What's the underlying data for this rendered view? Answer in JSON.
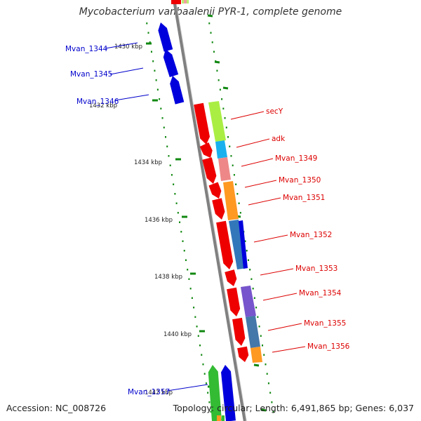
{
  "title": "Mycobacterium vanbaalenii PYR-1, complete genome",
  "footer": {
    "accession": "Accession: NC_008726",
    "topology": "Topology: circular; Length: 6,491,865 bp; Genes: 6,037"
  },
  "colors": {
    "backbone": "#808080",
    "reverse_gene": "#0000dd",
    "forward_gene": "#ee0000",
    "reverse_label": "#0000cc",
    "forward_label": "#dd0000",
    "tick": "#118811"
  },
  "tick_labels": [
    "1430 kbp",
    "1432 kbp",
    "1434 kbp",
    "1436 kbp",
    "1438 kbp",
    "1440 kbp",
    "1442 kbp"
  ],
  "genes_reverse": [
    "Mvan_1344",
    "Mvan_1345",
    "Mvan_1346",
    "Mvan_1357"
  ],
  "genes_forward": [
    "secY",
    "adk",
    "Mvan_1349",
    "Mvan_1350",
    "Mvan_1351",
    "Mvan_1352",
    "Mvan_1353",
    "Mvan_1354",
    "Mvan_1355",
    "Mvan_1356"
  ]
}
